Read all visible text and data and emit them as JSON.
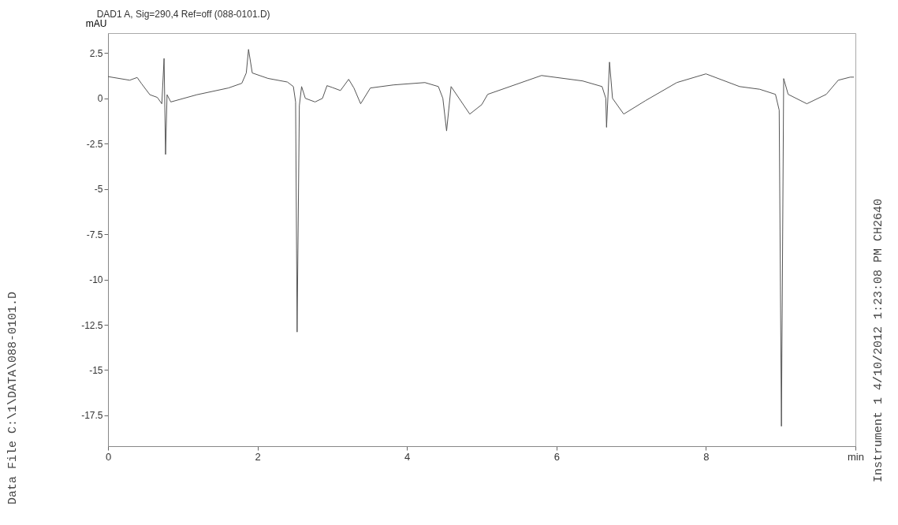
{
  "chart_data": {
    "type": "line",
    "title": "DAD1 A, Sig=290,4 Ref=off (088-0101.D)",
    "ylabel": "mAU",
    "annotations": [
      "Data File C:\\1\\DATA\\088-0101.D",
      "Instrument 1 4/10/2012 1:23:08 PM CH2640"
    ],
    "x": [
      0,
      0.29,
      0.39,
      0.45,
      0.56,
      0.66,
      0.72,
      0.75,
      0.77,
      0.79,
      0.84,
      1.19,
      1.61,
      1.79,
      1.85,
      1.88,
      1.93,
      2.14,
      2.4,
      2.48,
      2.51,
      2.53,
      2.56,
      2.59,
      2.64,
      2.77,
      2.87,
      2.93,
      3.0,
      3.11,
      3.22,
      3.29,
      3.38,
      3.51,
      3.82,
      4.24,
      4.42,
      4.48,
      4.53,
      4.59,
      4.84,
      5.0,
      5.08,
      5.8,
      6.35,
      6.61,
      6.66,
      6.67,
      6.71,
      6.75,
      6.9,
      7.19,
      7.61,
      8.0,
      8.45,
      8.72,
      8.93,
      8.98,
      9.01,
      9.04,
      9.1,
      9.35,
      9.61,
      9.77,
      9.93,
      9.98
    ],
    "series": [
      {
        "color": "#555555",
        "values": [
          1.2,
          1.0,
          1.15,
          0.8,
          0.2,
          0.05,
          -0.3,
          2.2,
          -3.1,
          0.2,
          -0.2,
          0.2,
          0.57,
          0.83,
          1.4,
          2.7,
          1.4,
          1.1,
          0.9,
          0.65,
          -0.2,
          -12.9,
          -0.4,
          0.65,
          0,
          -0.2,
          0,
          0.7,
          0.6,
          0.43,
          1.05,
          0.57,
          -0.3,
          0.57,
          0.74,
          0.87,
          0.65,
          0,
          -1.8,
          0.65,
          -0.87,
          -0.35,
          0.22,
          1.26,
          0.96,
          0.65,
          0,
          -1.6,
          2.0,
          0,
          -0.87,
          -0.13,
          0.87,
          1.35,
          0.65,
          0.5,
          0.22,
          -0.65,
          -18.1,
          1.09,
          0.22,
          -0.3,
          0.22,
          1.0,
          1.17,
          1.17
        ]
      }
    ],
    "xlim": [
      0,
      10
    ],
    "xticks": [
      0,
      2,
      4,
      6,
      8,
      {
        "value": 10,
        "label": "min"
      }
    ],
    "ylim": [
      -19.2,
      3.6
    ],
    "yticks": [
      -17.5,
      -15,
      -12.5,
      -10,
      -7.5,
      -5,
      -2.5,
      0,
      2.5
    ],
    "grid": false,
    "marker": "none",
    "line_style": "solid"
  }
}
